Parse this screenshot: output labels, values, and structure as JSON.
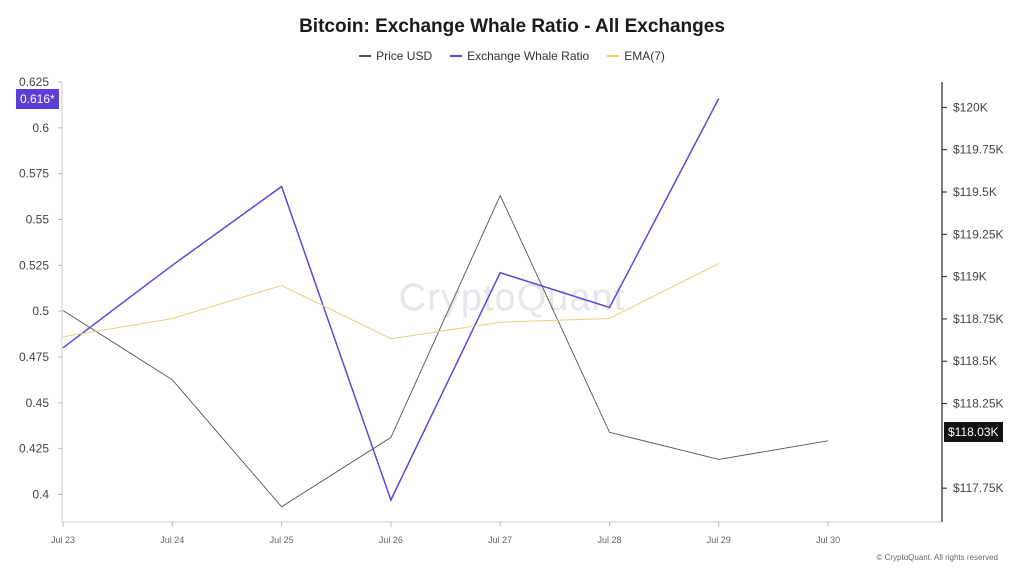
{
  "chart_data": {
    "type": "line",
    "title": "Bitcoin: Exchange Whale Ratio - All Exchanges",
    "categories": [
      "Jul 23",
      "Jul 24",
      "Jul 25",
      "Jul 26",
      "Jul 27",
      "Jul 28",
      "Jul 29",
      "Jul 30"
    ],
    "series": [
      {
        "name": "Price USD",
        "axis": "right",
        "color": "#555555",
        "values": [
          118800,
          118390,
          117640,
          118050,
          119480,
          118080,
          117920,
          118030
        ]
      },
      {
        "name": "Exchange Whale Ratio",
        "axis": "left",
        "color": "#5b4ad6",
        "values": [
          0.48,
          0.525,
          0.568,
          0.397,
          0.521,
          0.502,
          0.616,
          null
        ]
      },
      {
        "name": "EMA(7)",
        "axis": "left",
        "color": "#e8cd7a",
        "values": [
          0.486,
          0.496,
          0.514,
          0.485,
          0.494,
          0.496,
          0.526,
          null
        ]
      }
    ],
    "left_axis": {
      "ylim": [
        0.385,
        0.625
      ],
      "ticks": [
        "0.625",
        "0.6",
        "0.575",
        "0.55",
        "0.525",
        "0.5",
        "0.475",
        "0.45",
        "0.425",
        "0.4"
      ],
      "tick_values": [
        0.625,
        0.6,
        0.575,
        0.55,
        0.525,
        0.5,
        0.475,
        0.45,
        0.425,
        0.4
      ]
    },
    "right_axis": {
      "ylim": [
        117550,
        120150
      ],
      "ticks": [
        "$120K",
        "$119.75K",
        "$119.5K",
        "$119.25K",
        "$119K",
        "$118.75K",
        "$118.5K",
        "$118.25K",
        "$117.75K"
      ],
      "tick_values": [
        120000,
        119750,
        119500,
        119250,
        119000,
        118750,
        118500,
        118250,
        117750
      ]
    },
    "current_labels": {
      "left": "0.616*",
      "right": "$118.03K"
    },
    "watermark": "CryptoQuant",
    "copyright": "© CryptoQuant. All rights reserved"
  }
}
